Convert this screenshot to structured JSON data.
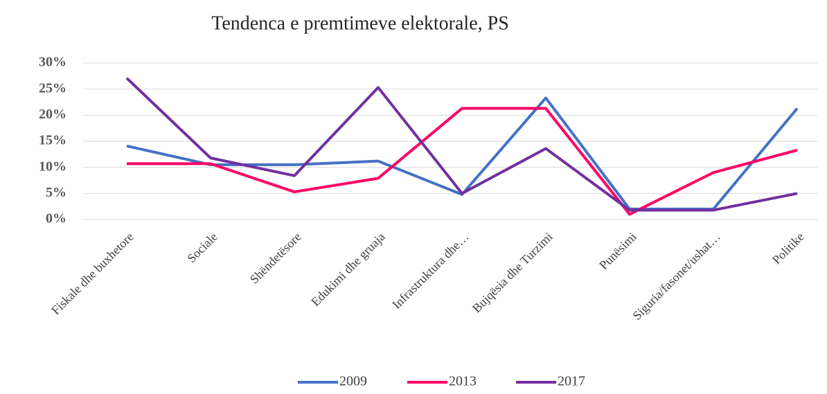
{
  "chart_data": {
    "type": "line",
    "title": "Tendenca e premtimeve elektorale, PS",
    "categories": [
      "Fiskale dhe buxhetore",
      "Sociale",
      "Shëndetësore",
      "Edukimi dhe gruaja",
      "Infrastruktura dhe…",
      "Bujqësia dhe Turzimi",
      "Punësimi",
      "Siguria/fasonet/ushat…",
      "Politike"
    ],
    "series": [
      {
        "name": "2009",
        "color": "#4472c4",
        "values": [
          14.1,
          10.5,
          10.5,
          11.2,
          4.8,
          23.3,
          2,
          2,
          21.3
        ]
      },
      {
        "name": "2013",
        "color": "#ff0066",
        "values": [
          10.7,
          10.7,
          5.3,
          7.9,
          21.3,
          21.3,
          1,
          9,
          13.3
        ]
      },
      {
        "name": "2017",
        "color": "#7030a0",
        "values": [
          27.1,
          11.8,
          8.4,
          25.3,
          5,
          13.6,
          1.8,
          1.8,
          5
        ]
      }
    ],
    "ylim": [
      0,
      30
    ],
    "yticks": [
      {
        "value": 0,
        "label": "0%"
      },
      {
        "value": 5,
        "label": "5%"
      },
      {
        "value": 10,
        "label": "10%"
      },
      {
        "value": 15,
        "label": "15%"
      },
      {
        "value": 20,
        "label": "20%"
      },
      {
        "value": 25,
        "label": "25%"
      },
      {
        "value": 30,
        "label": "30%"
      }
    ],
    "grid": true,
    "legend": "bottom"
  }
}
